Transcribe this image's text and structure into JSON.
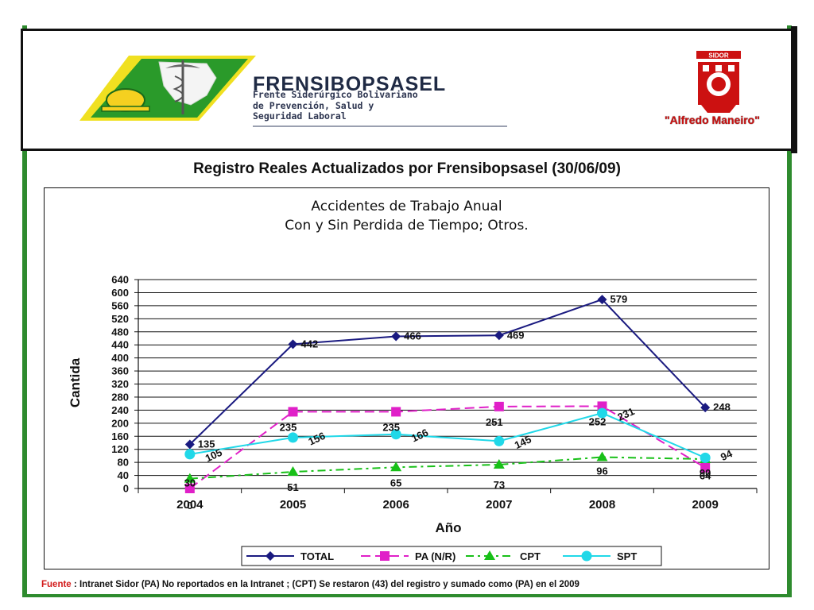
{
  "header": {
    "org_name": "FRENSIBOPSASEL",
    "org_subtitle": [
      "Frente Siderúrgico Bolivariano",
      "de Prevención, Salud y",
      "Seguridad Laboral"
    ],
    "sidor_label": "SIDOR",
    "company_name": "\"Alfredo Maneiro\""
  },
  "page_title": "Registro Reales Actualizados por Frensibopsasel (30/06/09)",
  "chart_data": {
    "type": "line",
    "title": "Accidentes de Trabajo Anual",
    "subtitle": "Con y Sin Perdida de Tiempo; Otros.",
    "xlabel": "Año",
    "ylabel": "Cantida",
    "categories": [
      "2004",
      "2005",
      "2006",
      "2007",
      "2008",
      "2009"
    ],
    "ylim": [
      0,
      640
    ],
    "yticks": [
      0,
      40,
      80,
      120,
      160,
      200,
      240,
      280,
      320,
      360,
      400,
      440,
      480,
      520,
      560,
      600,
      640
    ],
    "grid": true,
    "legend_position": "bottom",
    "series": [
      {
        "name": "TOTAL",
        "values": [
          135,
          442,
          466,
          469,
          579,
          248
        ],
        "color": "#1a1a80",
        "marker": "diamond",
        "dash": "solid"
      },
      {
        "name": "PA (N/R)",
        "values": [
          0,
          235,
          235,
          251,
          252,
          64
        ],
        "color": "#e020c8",
        "marker": "square",
        "dash": "long-dash"
      },
      {
        "name": "CPT",
        "values": [
          30,
          51,
          65,
          73,
          96,
          90
        ],
        "color": "#18c018",
        "marker": "triangle",
        "dash": "dash-dot"
      },
      {
        "name": "SPT",
        "values": [
          105,
          156,
          166,
          145,
          231,
          94
        ],
        "color": "#20d8e8",
        "marker": "circle",
        "dash": "solid"
      }
    ],
    "data_labels": [
      [
        "135",
        "442",
        "466",
        "469",
        "579",
        "248"
      ],
      [
        "0",
        "235",
        "235",
        "251",
        "252",
        "64"
      ],
      [
        "30",
        "51",
        "65",
        "73",
        "96",
        "90"
      ],
      [
        "105",
        "156",
        "166",
        "145",
        "231",
        "94"
      ]
    ]
  },
  "footnote": {
    "label": "Fuente",
    "separator": " :  ",
    "text": "Intranet Sidor (PA) No reportados en la Intranet ; (CPT) Se restaron (43) del registro y sumado como (PA) en el 2009"
  }
}
